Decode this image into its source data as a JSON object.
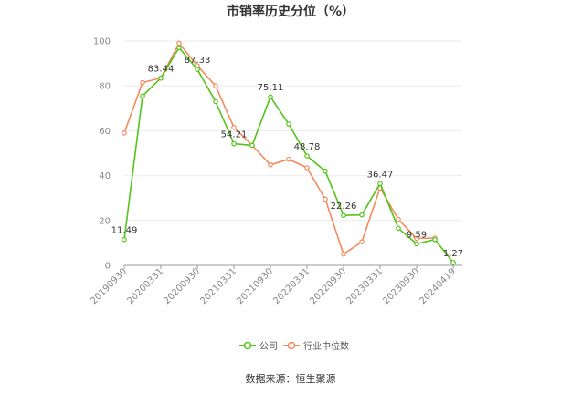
{
  "chart_data": {
    "type": "line",
    "title": "市销率历史分位（%）",
    "source": "数据来源：恒生聚源",
    "xlabel": "",
    "ylabel": "",
    "ylim": [
      0,
      100
    ],
    "yticks": [
      0,
      20,
      40,
      60,
      80,
      100
    ],
    "grid": true,
    "legend_position": "bottom",
    "x_tick_labels": [
      "20190930",
      "20200331",
      "20200930",
      "20210331",
      "20210930",
      "20220331",
      "20220930",
      "20230331",
      "20230930",
      "20240419"
    ],
    "x_tick_index": [
      0,
      2,
      4,
      6,
      8,
      10,
      12,
      14,
      16,
      18
    ],
    "series": [
      {
        "name": "公司",
        "color": "#52c41a",
        "values": [
          11.49,
          75.5,
          83.44,
          97.0,
          87.33,
          73.0,
          54.21,
          53.5,
          75.11,
          63.0,
          48.78,
          42.0,
          22.26,
          22.5,
          36.47,
          16.5,
          9.59,
          11.5,
          1.27
        ],
        "labels": {
          "0": "11.49",
          "2": "83.44",
          "4": "87.33",
          "6": "54.21",
          "8": "75.11",
          "10": "48.78",
          "12": "22.26",
          "14": "36.47",
          "16": "9.59",
          "18": "1.27"
        }
      },
      {
        "name": "行业中位数",
        "color": "#f58a5c",
        "values": [
          59.0,
          81.5,
          83.5,
          99.0,
          89.0,
          80.0,
          61.5,
          53.5,
          44.8,
          47.3,
          43.5,
          29.5,
          5.0,
          10.5,
          34.5,
          20.5,
          12.0,
          12.2,
          null
        ]
      }
    ]
  }
}
